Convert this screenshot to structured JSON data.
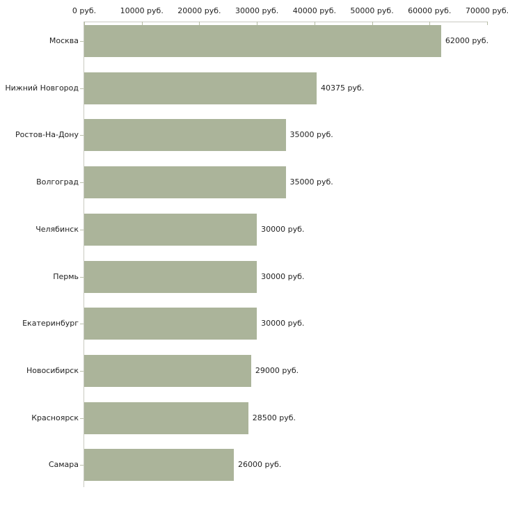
{
  "chart_data": {
    "type": "bar",
    "orientation": "horizontal",
    "categories": [
      "Москва",
      "Нижний Новгород",
      "Ростов-На-Дону",
      "Волгоград",
      "Челябинск",
      "Пермь",
      "Екатеринбург",
      "Новосибирск",
      "Красноярск",
      "Самара"
    ],
    "values": [
      62000,
      40375,
      35000,
      35000,
      30000,
      30000,
      30000,
      29000,
      28500,
      26000
    ],
    "value_labels": [
      "62000 руб.",
      "40375 руб.",
      "35000 руб.",
      "35000 руб.",
      "30000 руб.",
      "30000 руб.",
      "30000 руб.",
      "29000 руб.",
      "28500 руб.",
      "26000 руб."
    ],
    "x_axis": {
      "min": 0,
      "max": 70000,
      "tick_interval": 10000,
      "tick_labels": [
        "0 руб.",
        "10000 руб.",
        "20000 руб.",
        "30000 руб.",
        "40000 руб.",
        "50000 руб.",
        "60000 руб.",
        "70000 руб."
      ],
      "position": "top"
    },
    "title": "",
    "xlabel": "",
    "ylabel": "",
    "legend": null,
    "grid": false,
    "colors": {
      "bar": "#abb49a",
      "axis_line": "#c9cac1",
      "tick_mark": "#b4bba2",
      "text": "#222222",
      "background": "#ffffff"
    }
  }
}
